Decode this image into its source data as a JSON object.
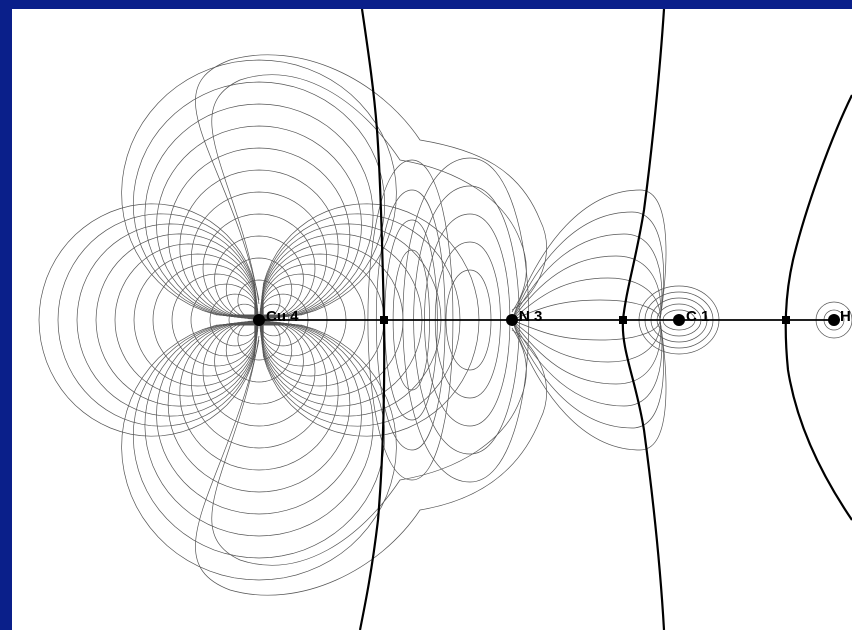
{
  "frame": {
    "border_color": "#0a1f8a",
    "panel_color": "#ffffff"
  },
  "atoms": [
    {
      "label": "Cu 4",
      "element": "Cu",
      "index": 4
    },
    {
      "label": "N 3",
      "element": "N",
      "index": 3
    },
    {
      "label": "C 1",
      "element": "C",
      "index": 1
    },
    {
      "label": "H",
      "element": "H",
      "index": null
    }
  ],
  "bond_critical_points": 3,
  "bond_path_color": "#000000",
  "contour_color": "#555555"
}
